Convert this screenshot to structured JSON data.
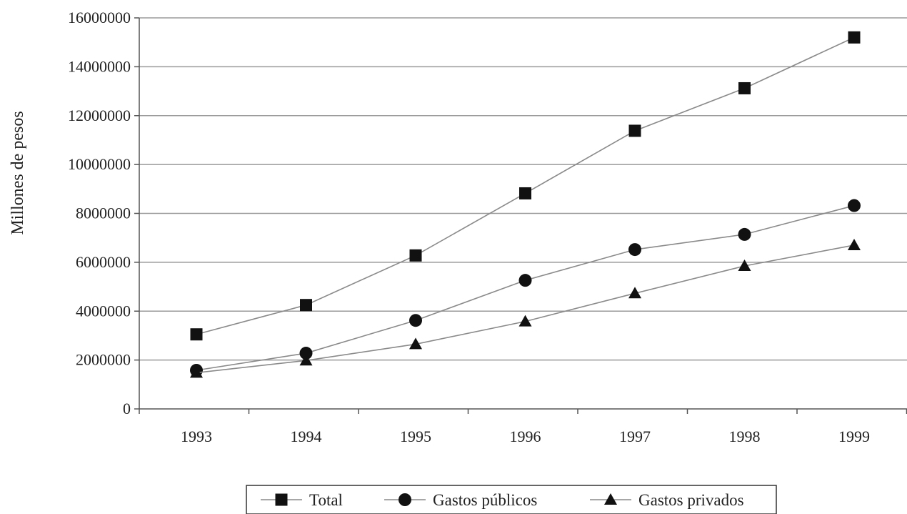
{
  "chart_data": {
    "type": "line",
    "title": "",
    "xlabel": "",
    "ylabel": "Millones de pesos",
    "categories": [
      "1993",
      "1994",
      "1995",
      "1996",
      "1997",
      "1998",
      "1999"
    ],
    "y_ticks": [
      "0",
      "2000000",
      "4000000",
      "6000000",
      "8000000",
      "10000000",
      "12000000",
      "14000000",
      "16000000"
    ],
    "ylim": [
      0,
      16000000
    ],
    "grid": "horizontal",
    "legend_position": "bottom",
    "series": [
      {
        "name": "Total",
        "marker": "square",
        "values": [
          3050000,
          4250000,
          6280000,
          8820000,
          11380000,
          13120000,
          15200000
        ]
      },
      {
        "name": "Gastos públicos",
        "marker": "circle",
        "values": [
          1580000,
          2280000,
          3620000,
          5260000,
          6520000,
          7140000,
          8320000
        ]
      },
      {
        "name": "Gastos privados",
        "marker": "triangle",
        "values": [
          1480000,
          1980000,
          2650000,
          3580000,
          4730000,
          5850000,
          6700000
        ]
      }
    ]
  },
  "colors": {
    "line": "#8a8a8a",
    "marker": "#111111",
    "grid": "#9a9a9a",
    "axis": "#555555"
  }
}
